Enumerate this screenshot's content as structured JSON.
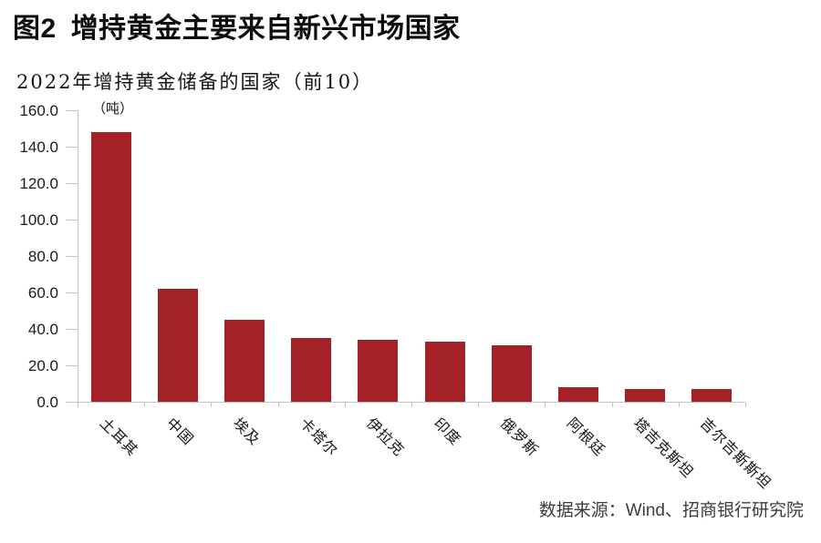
{
  "figure": {
    "label": "图2",
    "title": "增持黄金主要来自新兴市场国家"
  },
  "source": {
    "text": "数据来源：Wind、招商银行研究院"
  },
  "chart_data": {
    "type": "bar",
    "title": "2022年增持黄金储备的国家（前10）",
    "unit_label": "（吨）",
    "categories": [
      "土耳其",
      "中国",
      "埃及",
      "卡塔尔",
      "伊拉克",
      "印度",
      "俄罗斯",
      "阿根廷",
      "塔吉克斯坦",
      "吉尔吉斯斯坦"
    ],
    "values": [
      148,
      62,
      45,
      35,
      34,
      33,
      31,
      8,
      7,
      7
    ],
    "xlabel": "",
    "ylabel": "（吨）",
    "ylim": [
      0,
      160
    ],
    "ytick_step": 20,
    "ytick_labels": [
      "0.0",
      "20.0",
      "40.0",
      "60.0",
      "80.0",
      "100.0",
      "120.0",
      "140.0",
      "160.0"
    ],
    "grid": false,
    "legend": null,
    "bar_color": "#a32127",
    "axis_color": "#c2c2c2"
  }
}
